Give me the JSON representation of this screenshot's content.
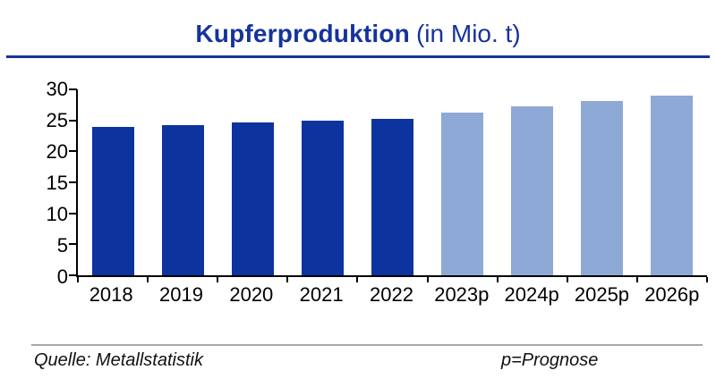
{
  "title": {
    "main": "Kupferproduktion",
    "suffix": "(in Mio. t)"
  },
  "footer": {
    "source": "Quelle: Metallstatistik",
    "note": "p=Prognose"
  },
  "colors": {
    "title": "#16339b",
    "title_underline": "#16339b",
    "actual_bar": "#0d339e",
    "forecast_bar": "#8fa9d6",
    "axis": "#000000",
    "footer_line": "#a9a9a9",
    "text": "#000000"
  },
  "chart_data": {
    "type": "bar",
    "title": "Kupferproduktion (in Mio. t)",
    "categories": [
      "2018",
      "2019",
      "2020",
      "2021",
      "2022",
      "2023p",
      "2024p",
      "2025p",
      "2026p"
    ],
    "series": [
      {
        "name": "Kupferproduktion",
        "values": [
          24.0,
          24.2,
          24.6,
          24.9,
          25.3,
          26.3,
          27.2,
          28.1,
          29.0
        ],
        "point_styles": [
          "actual",
          "actual",
          "actual",
          "actual",
          "actual",
          "forecast",
          "forecast",
          "forecast",
          "forecast"
        ]
      }
    ],
    "xlabel": "",
    "ylabel": "",
    "ylim": [
      0,
      30
    ],
    "yticks": [
      0,
      5,
      10,
      15,
      20,
      25,
      30
    ],
    "grid": false,
    "legend": "none",
    "annotations": [
      "p=Prognose"
    ],
    "source": "Quelle: Metallstatistik"
  }
}
